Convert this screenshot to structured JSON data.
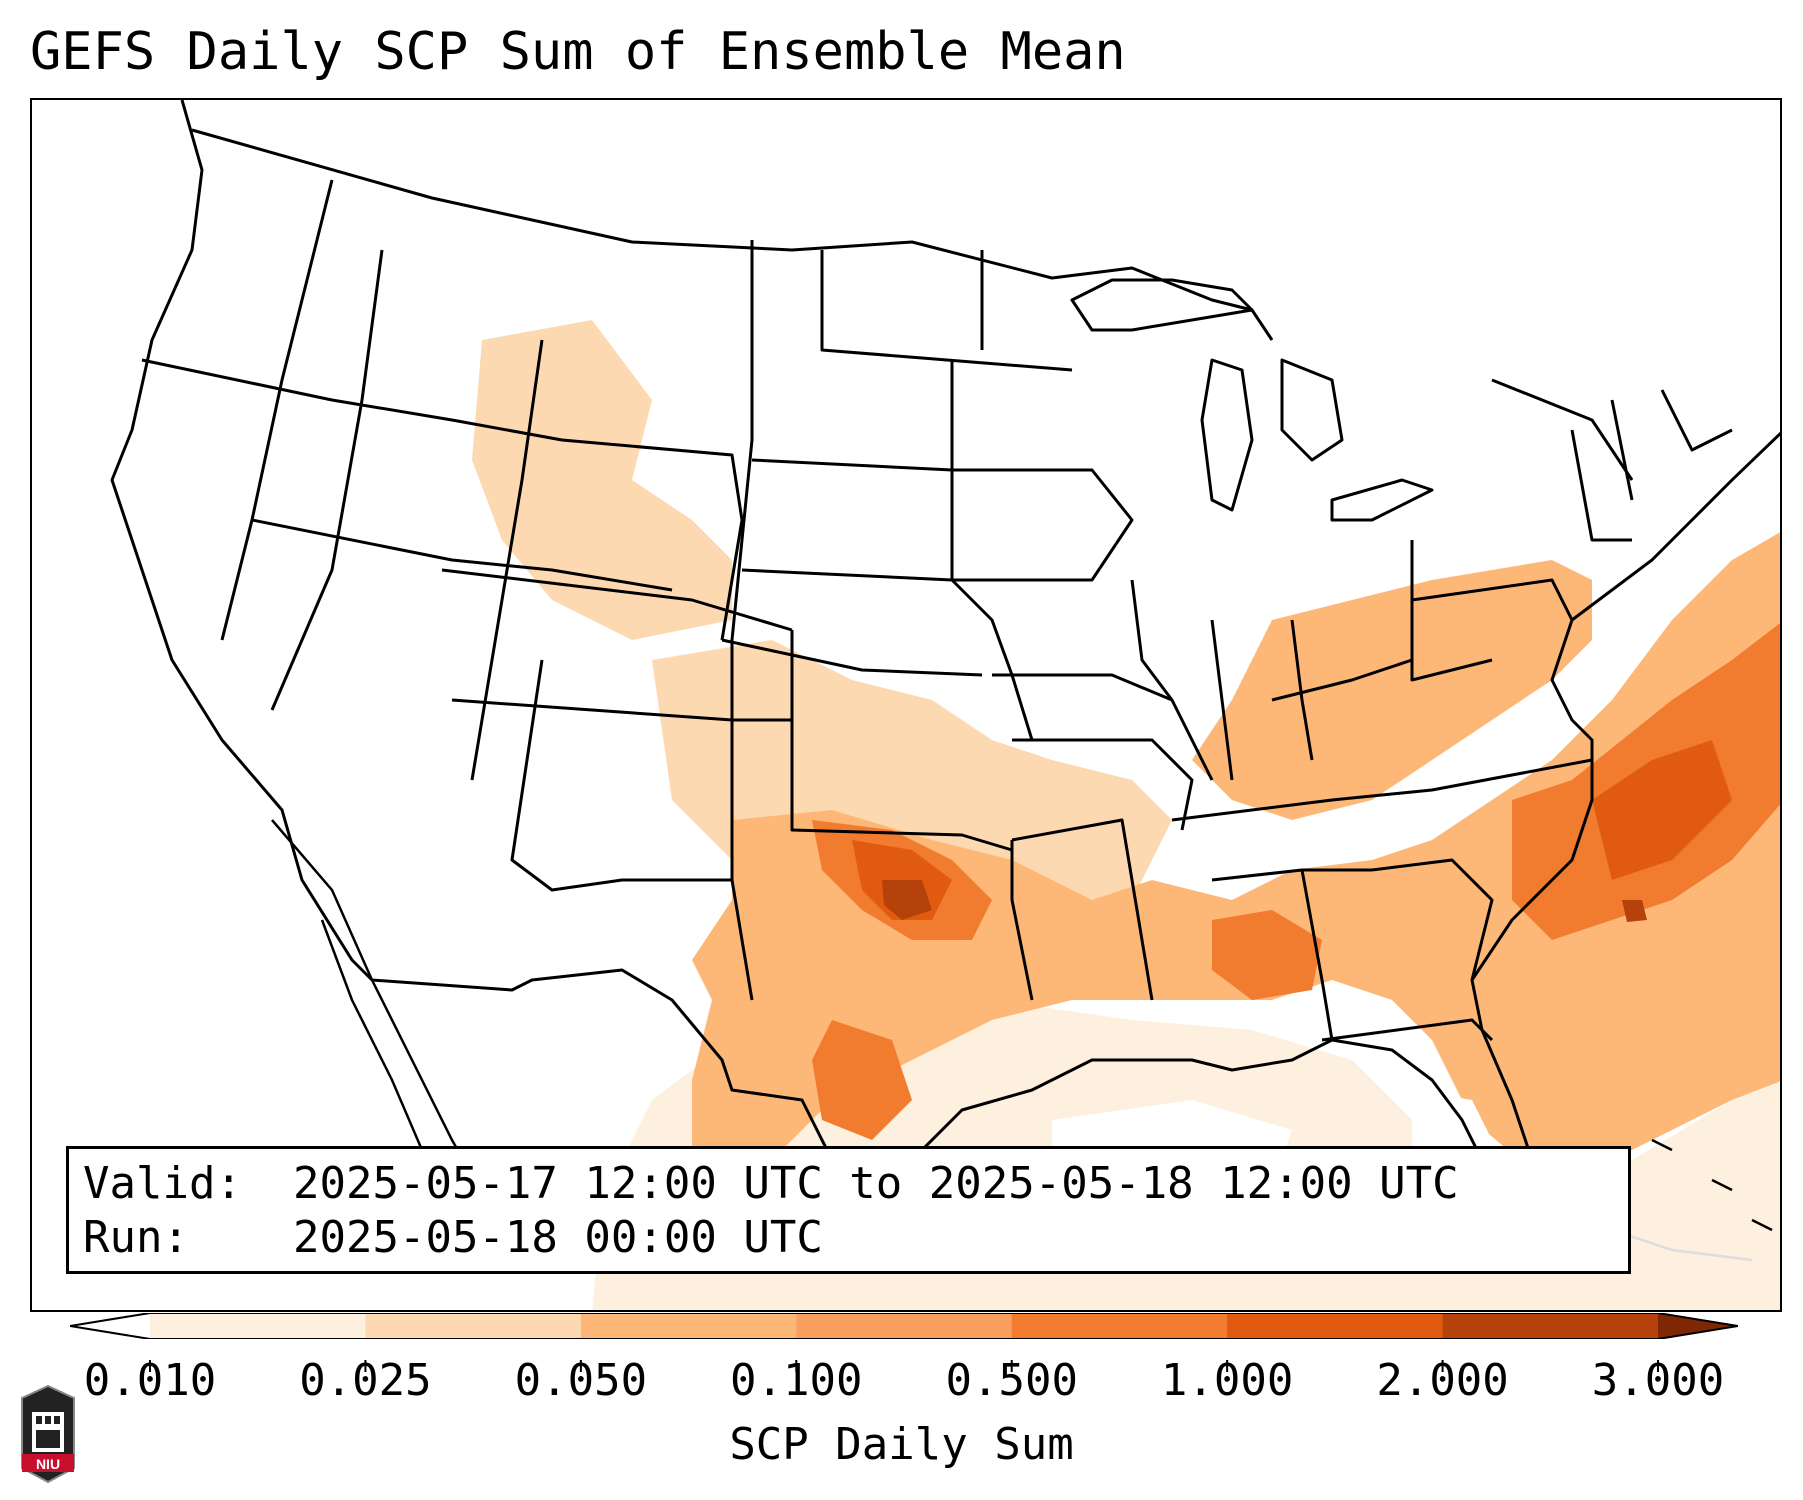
{
  "title": "GEFS Daily SCP Sum of Ensemble Mean",
  "info": {
    "valid_key": "Valid:",
    "valid_value": "2025-05-17 12:00 UTC to 2025-05-18 12:00 UTC",
    "run_key": "Run:",
    "run_value": "2025-05-18 00:00 UTC"
  },
  "colorbar": {
    "label": "SCP Daily Sum",
    "ticks": [
      "0.010",
      "0.025",
      "0.050",
      "0.100",
      "0.500",
      "1.000",
      "2.000",
      "3.000"
    ],
    "colors": [
      "#fef0df",
      "#fdd9b1",
      "#fdb878",
      "#f9a05f",
      "#f17b2f",
      "#e05b0f",
      "#b5420a",
      "#7f2704"
    ],
    "extend": "both"
  },
  "map": {
    "region": "Continental United States",
    "palette_levels": {
      "lvl1": "#fef0df",
      "lvl2": "#fdd9b1",
      "lvl3": "#fdb878",
      "lvl4": "#f9a05f",
      "lvl5": "#f17b2f",
      "lvl6": "#e05b0f",
      "lvl7": "#b5420a",
      "lvl8": "#7f2704"
    }
  },
  "logo": {
    "text": "NIU",
    "colors": {
      "shield": "#c8102e",
      "tower": "#222222"
    }
  }
}
